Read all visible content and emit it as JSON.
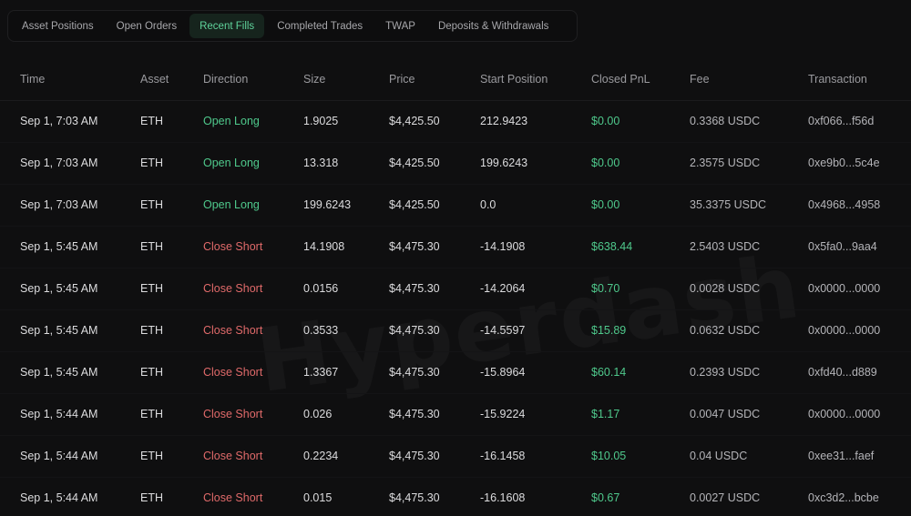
{
  "tabs": [
    {
      "label": "Asset Positions",
      "active": false
    },
    {
      "label": "Open Orders",
      "active": false
    },
    {
      "label": "Recent Fills",
      "active": true
    },
    {
      "label": "Completed Trades",
      "active": false
    },
    {
      "label": "TWAP",
      "active": false
    },
    {
      "label": "Deposits & Withdrawals",
      "active": false
    }
  ],
  "table": {
    "headers": [
      "Time",
      "Asset",
      "Direction",
      "Size",
      "Price",
      "Start Position",
      "Closed PnL",
      "Fee",
      "Transaction"
    ],
    "rows": [
      {
        "time": "Sep 1, 7:03 AM",
        "asset": "ETH",
        "direction": "Open Long",
        "size": "1.9025",
        "price": "$4,425.50",
        "start_position": "212.9423",
        "closed_pnl": "$0.00",
        "fee": "0.3368 USDC",
        "tx": "0xf066...f56d"
      },
      {
        "time": "Sep 1, 7:03 AM",
        "asset": "ETH",
        "direction": "Open Long",
        "size": "13.318",
        "price": "$4,425.50",
        "start_position": "199.6243",
        "closed_pnl": "$0.00",
        "fee": "2.3575 USDC",
        "tx": "0xe9b0...5c4e"
      },
      {
        "time": "Sep 1, 7:03 AM",
        "asset": "ETH",
        "direction": "Open Long",
        "size": "199.6243",
        "price": "$4,425.50",
        "start_position": "0.0",
        "closed_pnl": "$0.00",
        "fee": "35.3375 USDC",
        "tx": "0x4968...4958"
      },
      {
        "time": "Sep 1, 5:45 AM",
        "asset": "ETH",
        "direction": "Close Short",
        "size": "14.1908",
        "price": "$4,475.30",
        "start_position": "-14.1908",
        "closed_pnl": "$638.44",
        "fee": "2.5403 USDC",
        "tx": "0x5fa0...9aa4"
      },
      {
        "time": "Sep 1, 5:45 AM",
        "asset": "ETH",
        "direction": "Close Short",
        "size": "0.0156",
        "price": "$4,475.30",
        "start_position": "-14.2064",
        "closed_pnl": "$0.70",
        "fee": "0.0028 USDC",
        "tx": "0x0000...0000"
      },
      {
        "time": "Sep 1, 5:45 AM",
        "asset": "ETH",
        "direction": "Close Short",
        "size": "0.3533",
        "price": "$4,475.30",
        "start_position": "-14.5597",
        "closed_pnl": "$15.89",
        "fee": "0.0632 USDC",
        "tx": "0x0000...0000"
      },
      {
        "time": "Sep 1, 5:45 AM",
        "asset": "ETH",
        "direction": "Close Short",
        "size": "1.3367",
        "price": "$4,475.30",
        "start_position": "-15.8964",
        "closed_pnl": "$60.14",
        "fee": "0.2393 USDC",
        "tx": "0xfd40...d889"
      },
      {
        "time": "Sep 1, 5:44 AM",
        "asset": "ETH",
        "direction": "Close Short",
        "size": "0.026",
        "price": "$4,475.30",
        "start_position": "-15.9224",
        "closed_pnl": "$1.17",
        "fee": "0.0047 USDC",
        "tx": "0x0000...0000"
      },
      {
        "time": "Sep 1, 5:44 AM",
        "asset": "ETH",
        "direction": "Close Short",
        "size": "0.2234",
        "price": "$4,475.30",
        "start_position": "-16.1458",
        "closed_pnl": "$10.05",
        "fee": "0.04 USDC",
        "tx": "0xee31...faef"
      },
      {
        "time": "Sep 1, 5:44 AM",
        "asset": "ETH",
        "direction": "Close Short",
        "size": "0.015",
        "price": "$4,475.30",
        "start_position": "-16.1608",
        "closed_pnl": "$0.67",
        "fee": "0.0027 USDC",
        "tx": "0xc3d2...bcbe"
      }
    ]
  },
  "watermark": "Hyperdash",
  "colors": {
    "accent_green": "#4fc98c",
    "accent_red": "#e06a6a",
    "background": "#0f0f10"
  }
}
